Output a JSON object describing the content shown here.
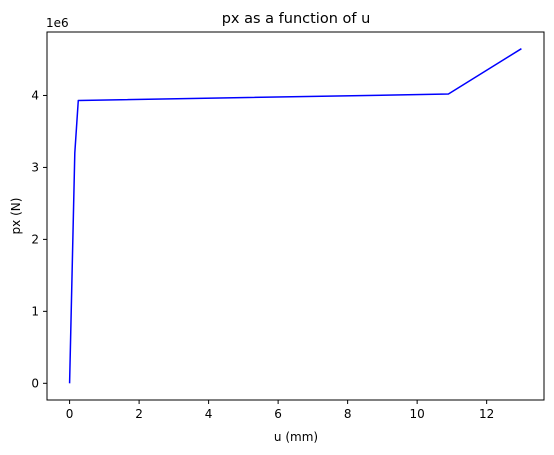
{
  "chart_data": {
    "type": "line",
    "title": "px as a function of u",
    "xlabel": "u (mm)",
    "ylabel": "px (N)",
    "y_offset_label": "1e6",
    "xlim": [
      -0.65,
      13.65
    ],
    "ylim": [
      -0.232,
      4.882
    ],
    "x_ticks": [
      0,
      2,
      4,
      6,
      8,
      10,
      12
    ],
    "y_ticks": [
      0,
      1,
      2,
      3,
      4
    ],
    "grid": false,
    "series": [
      {
        "color": "#0000ff",
        "x": [
          0,
          0.15,
          0.25,
          10.9,
          13.0
        ],
        "y": [
          0,
          3.2,
          3.93,
          4.02,
          4.65
        ]
      }
    ]
  }
}
